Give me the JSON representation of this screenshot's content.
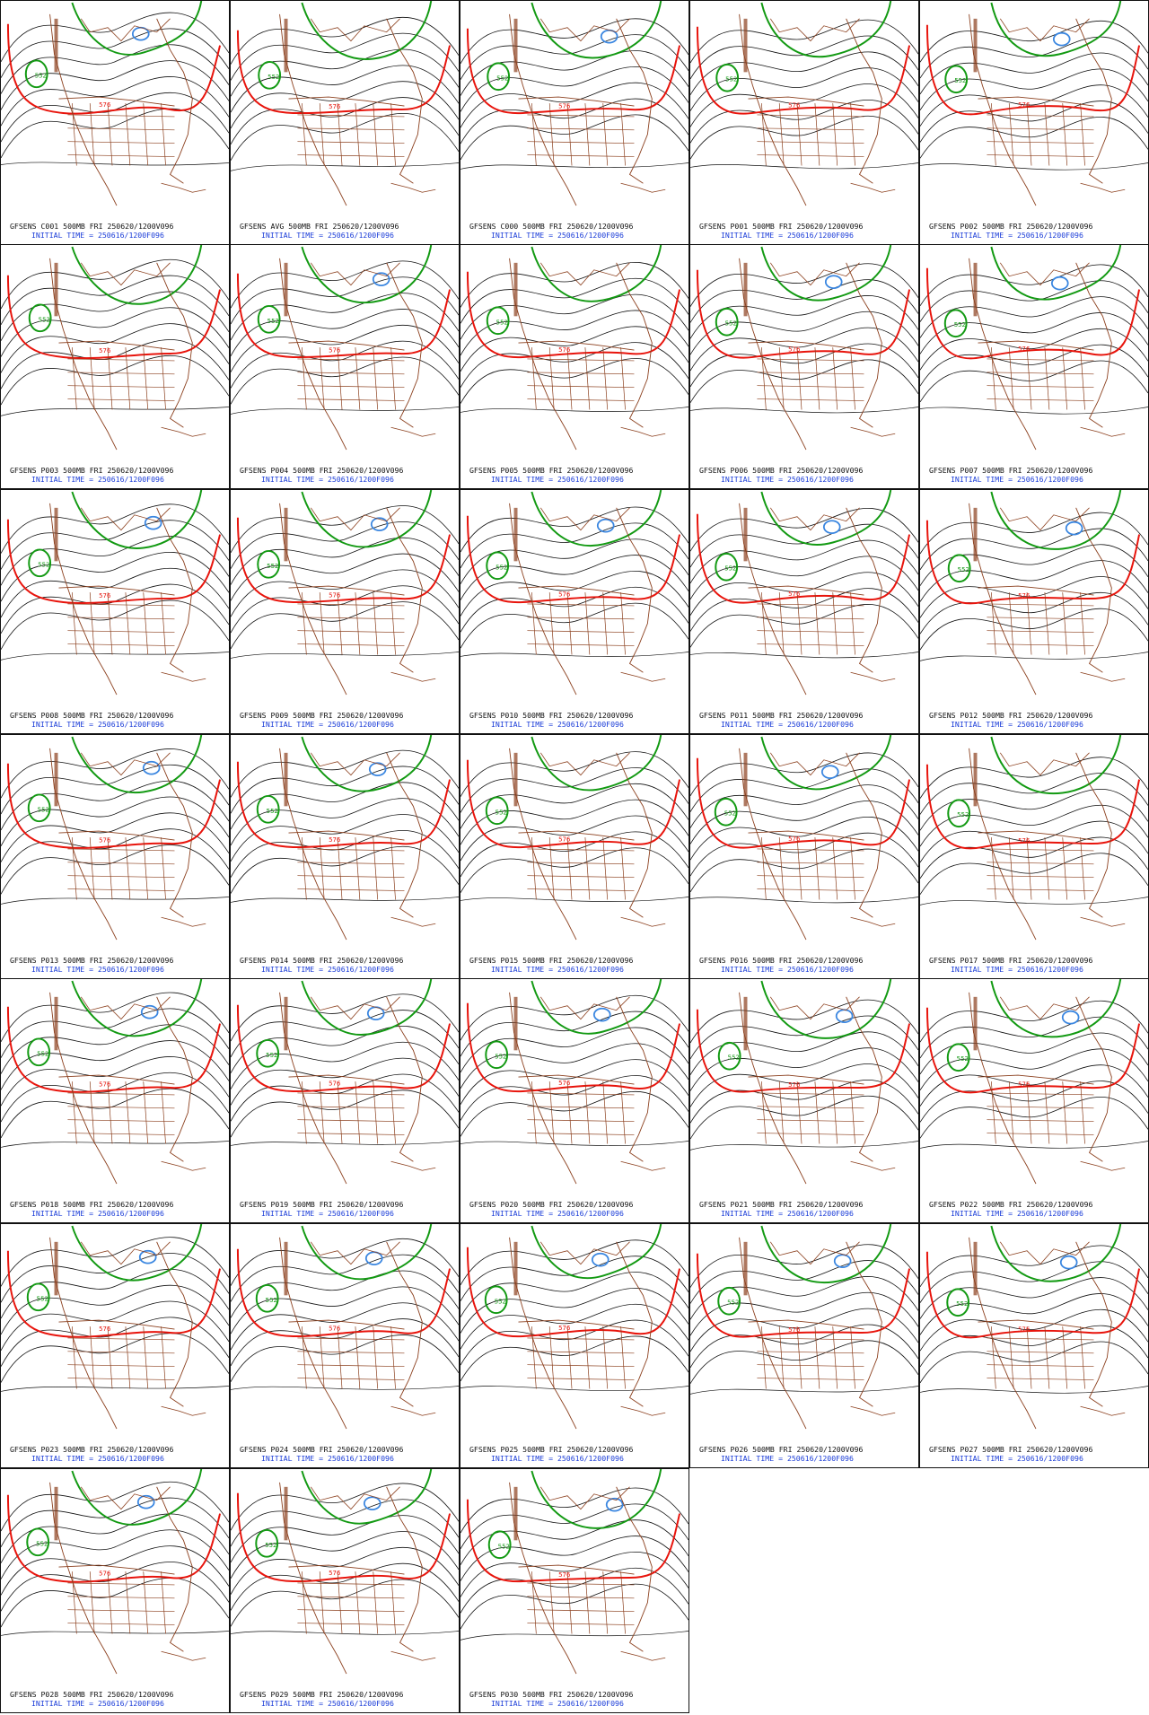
{
  "colors": {
    "thin": "#111111",
    "c552": "#139a13",
    "c576": "#e8140c",
    "low": "#3a86e0",
    "map": "#8b3f1d",
    "text_blue": "#1a3cd8"
  },
  "common": {
    "valid": "500MB FRI 250620/1200V096",
    "initial": "INITIAL TIME = 250616/1200F096"
  },
  "panels": [
    {
      "model": "GFSENS C001",
      "low": 1
    },
    {
      "model": "GFSENS AVG",
      "low": 0
    },
    {
      "model": "GFSENS C000",
      "low": 1
    },
    {
      "model": "GFSENS P001",
      "low": 0
    },
    {
      "model": "GFSENS P002",
      "low": 1
    },
    {
      "model": "GFSENS P003",
      "low": 0
    },
    {
      "model": "GFSENS P004",
      "low": 1
    },
    {
      "model": "GFSENS P005",
      "low": 0
    },
    {
      "model": "GFSENS P006",
      "low": 1
    },
    {
      "model": "GFSENS P007",
      "low": 1
    },
    {
      "model": "GFSENS P008",
      "low": 1
    },
    {
      "model": "GFSENS P009",
      "low": 1
    },
    {
      "model": "GFSENS P010",
      "low": 1
    },
    {
      "model": "GFSENS P011",
      "low": 1
    },
    {
      "model": "GFSENS P012",
      "low": 1
    },
    {
      "model": "GFSENS P013",
      "low": 1
    },
    {
      "model": "GFSENS P014",
      "low": 1
    },
    {
      "model": "GFSENS P015",
      "low": 0
    },
    {
      "model": "GFSENS P016",
      "low": 1
    },
    {
      "model": "GFSENS P017",
      "low": 0
    },
    {
      "model": "GFSENS P018",
      "low": 1
    },
    {
      "model": "GFSENS P019",
      "low": 1
    },
    {
      "model": "GFSENS P020",
      "low": 1
    },
    {
      "model": "GFSENS P021",
      "low": 1
    },
    {
      "model": "GFSENS P022",
      "low": 1
    },
    {
      "model": "GFSENS P023",
      "low": 1
    },
    {
      "model": "GFSENS P024",
      "low": 1
    },
    {
      "model": "GFSENS P025",
      "low": 1
    },
    {
      "model": "GFSENS P026",
      "low": 1
    },
    {
      "model": "GFSENS P027",
      "low": 1
    },
    {
      "model": "GFSENS P028",
      "low": 1
    },
    {
      "model": "GFSENS P029",
      "low": 1
    },
    {
      "model": "GFSENS P030",
      "low": 1
    }
  ],
  "contour_labels": {
    "c552": "552",
    "c576": "576"
  }
}
